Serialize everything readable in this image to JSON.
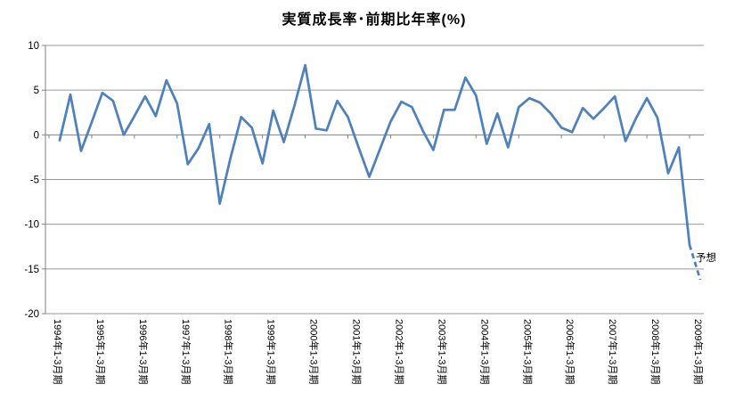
{
  "title": "実質成長率･前期比年率(%)",
  "annotation": {
    "label": "予想"
  },
  "colors": {
    "line": "#4F81BD",
    "gridline": "#9a9a9a",
    "axis": "#808080",
    "text": "#000000",
    "background": "#ffffff"
  },
  "chart_data": {
    "type": "line",
    "title": "実質成長率･前期比年率(%)",
    "unit": "%",
    "frequency": "quarterly",
    "start_period": "1994年1-3月期",
    "end_period": "2009年1-3月期",
    "ylim": [
      -20,
      10
    ],
    "y_ticks": [
      10,
      5,
      0,
      -5,
      -10,
      -15,
      -20
    ],
    "grid": "horizontal",
    "legend": "none",
    "x_tick_labels": [
      "1994年1-3月期",
      "1995年1-3月期",
      "1996年1-3月期",
      "1997年1-3月期",
      "1998年1-3月期",
      "1999年1-3月期",
      "2000年1-3月期",
      "2001年1-3月期",
      "2002年1-3月期",
      "2003年1-3月期",
      "2004年1-3月期",
      "2005年1-3月期",
      "2006年1-3月期",
      "2007年1-3月期",
      "2008年1-3月期",
      "2009年1-3月期"
    ],
    "series": [
      {
        "name": "実質成長率･前期比年率",
        "values": [
          -0.6,
          4.5,
          -1.8,
          1.4,
          4.7,
          3.8,
          0.0,
          2.1,
          4.3,
          2.1,
          6.1,
          3.5,
          -3.3,
          -1.5,
          1.2,
          -7.7,
          -2.6,
          2.0,
          0.8,
          -3.2,
          2.7,
          -0.8,
          3.3,
          7.8,
          0.7,
          0.5,
          3.8,
          2.0,
          -1.4,
          -4.7,
          -1.6,
          1.5,
          3.7,
          3.1,
          0.5,
          -1.7,
          2.8,
          2.8,
          6.4,
          4.4,
          -1.0,
          2.4,
          -1.4,
          3.1,
          4.1,
          3.6,
          2.4,
          0.8,
          0.3,
          3.0,
          1.8,
          3.0,
          4.3,
          -0.7,
          1.9,
          4.1,
          1.9,
          -4.3,
          -1.4,
          -12.3,
          -16.2
        ]
      }
    ],
    "forecast": {
      "label": "予想",
      "dashed_from_index": 59,
      "forecast_index": 60,
      "forecast_value": -16.2
    }
  }
}
